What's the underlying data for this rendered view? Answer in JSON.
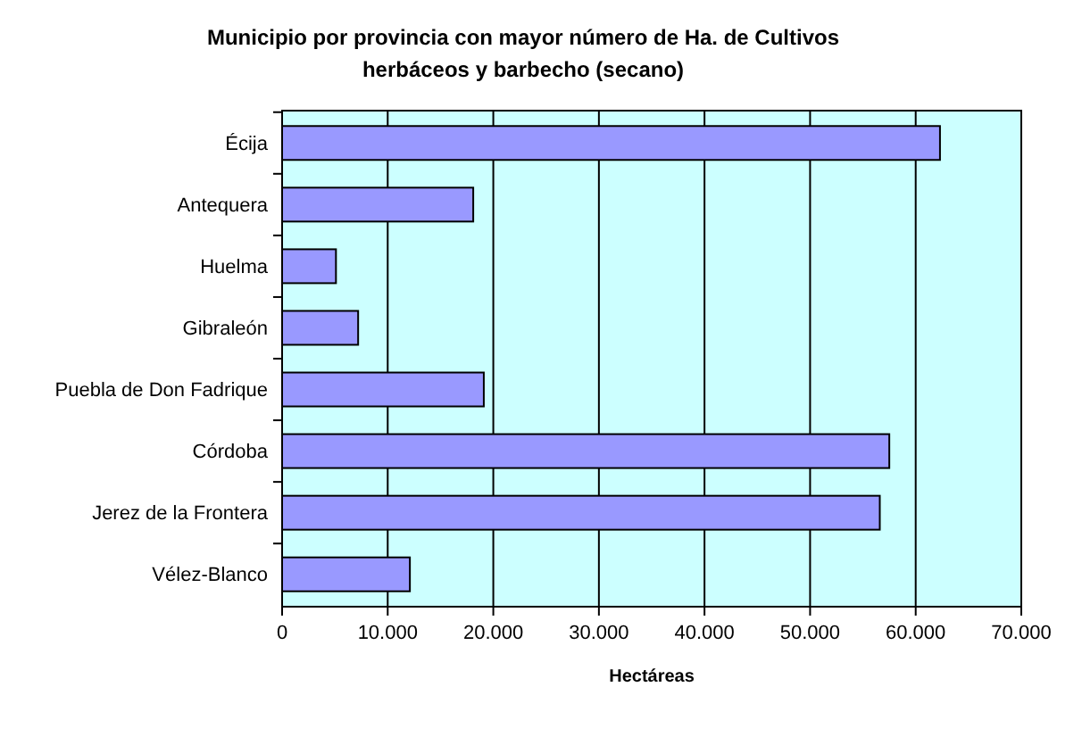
{
  "chart_data": {
    "type": "bar",
    "orientation": "horizontal",
    "title": "Municipio por provincia con mayor número de Ha. de  Cultivos herbáceos y barbecho (secano)",
    "xlabel": "Hectáreas",
    "categories": [
      "Écija",
      "Antequera",
      "Huelma",
      "Gibraleón",
      "Puebla de Don Fadrique",
      "Córdoba",
      "Jerez de la Frontera",
      "Vélez-Blanco"
    ],
    "values": [
      62300,
      18100,
      5100,
      7200,
      19100,
      57500,
      56600,
      12100
    ],
    "color": "#9999ff",
    "xlim": [
      0,
      70000
    ],
    "xticks": [
      0,
      {
        "value": 10000,
        "label": "10.000"
      },
      {
        "value": 20000,
        "label": "20.000"
      },
      {
        "value": 30000,
        "label": "30.000"
      },
      {
        "value": 40000,
        "label": "40.000"
      },
      {
        "value": 50000,
        "label": "50.000"
      },
      {
        "value": 60000,
        "label": "60.000"
      },
      {
        "value": 70000,
        "label": "70.000"
      }
    ],
    "grid": "x"
  }
}
